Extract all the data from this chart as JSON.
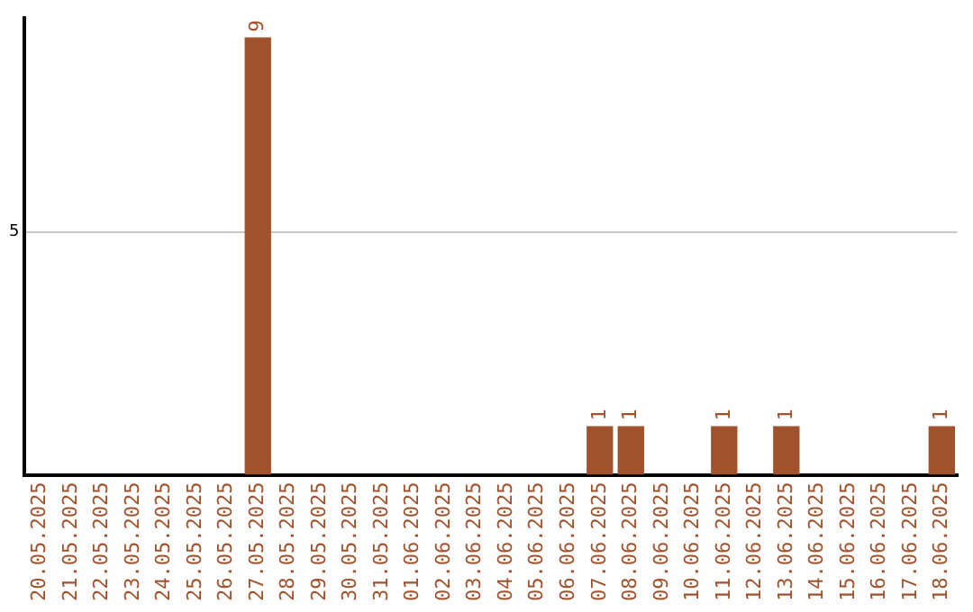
{
  "chart_data": {
    "type": "bar",
    "categories": [
      "20.05.2025",
      "21.05.2025",
      "22.05.2025",
      "23.05.2025",
      "24.05.2025",
      "25.05.2025",
      "26.05.2025",
      "27.05.2025",
      "28.05.2025",
      "29.05.2025",
      "30.05.2025",
      "31.05.2025",
      "01.06.2025",
      "02.06.2025",
      "03.06.2025",
      "04.06.2025",
      "05.06.2025",
      "06.06.2025",
      "07.06.2025",
      "08.06.2025",
      "09.06.2025",
      "10.06.2025",
      "11.06.2025",
      "12.06.2025",
      "13.06.2025",
      "14.06.2025",
      "15.06.2025",
      "16.06.2025",
      "17.06.2025",
      "18.06.2025"
    ],
    "values": [
      0,
      0,
      0,
      0,
      0,
      0,
      0,
      9,
      0,
      0,
      0,
      0,
      0,
      0,
      0,
      0,
      0,
      0,
      1,
      1,
      0,
      0,
      1,
      0,
      1,
      0,
      0,
      0,
      0,
      1
    ],
    "value_labels": [
      null,
      null,
      null,
      null,
      null,
      null,
      null,
      "9",
      null,
      null,
      null,
      null,
      null,
      null,
      null,
      null,
      null,
      null,
      "1",
      "1",
      null,
      null,
      "1",
      null,
      "1",
      null,
      null,
      null,
      null,
      "1"
    ],
    "color": "#a0522d",
    "ylim": [
      0,
      9.4
    ],
    "yticks": [
      5
    ],
    "grid": "y",
    "legend": false
  }
}
